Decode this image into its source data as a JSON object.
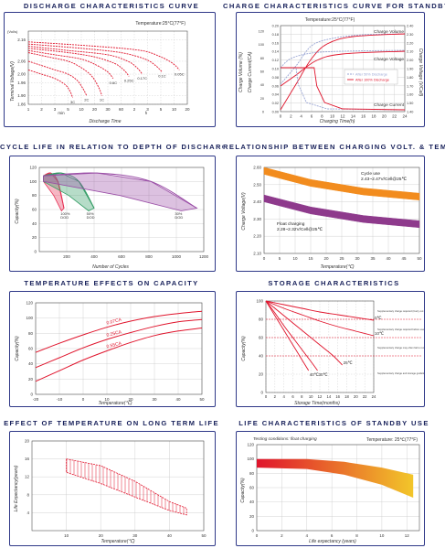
{
  "chart_data": [
    {
      "type": "line",
      "title": "DISCHARGE CHARACTERISTICS CURVE",
      "condition": "Temperature:25°C(77°F)",
      "xlabel": "Discharge Time",
      "ylabel": "Terminal Voltage(V)",
      "yunit": "(Vol/s)",
      "x_unit_min": "min",
      "x_unit_h": "h",
      "ylim": [
        1.86,
        2.2
      ],
      "xticks": [
        "1",
        "2",
        "3",
        "5",
        "10",
        "20",
        "30",
        "60",
        "2",
        "3",
        "5",
        "10",
        "20"
      ],
      "yticks": [
        "2.16",
        "2.06",
        "2.00",
        "1.96",
        "1.90",
        "1.86"
      ],
      "series": [
        {
          "name": "3C",
          "values": [
            [
              0,
              2.02
            ],
            [
              1,
              2.0
            ],
            [
              2,
              1.98
            ],
            [
              2.8,
              1.95
            ],
            [
              3.15,
              1.92
            ],
            [
              3.35,
              1.89
            ]
          ]
        },
        {
          "name": "2C",
          "values": [
            [
              0,
              2.06
            ],
            [
              1,
              2.04
            ],
            [
              2,
              2.02
            ],
            [
              3,
              2.0
            ],
            [
              3.7,
              1.97
            ],
            [
              4.15,
              1.93
            ],
            [
              4.4,
              1.9
            ]
          ]
        },
        {
          "name": "1C",
          "values": [
            [
              0,
              2.1
            ],
            [
              1.5,
              2.08
            ],
            [
              3,
              2.06
            ],
            [
              4,
              2.03
            ],
            [
              4.8,
              1.99
            ],
            [
              5.3,
              1.94
            ],
            [
              5.55,
              1.9
            ]
          ]
        },
        {
          "name": "0.6C",
          "values": [
            [
              0,
              2.11
            ],
            [
              2,
              2.09
            ],
            [
              4,
              2.07
            ],
            [
              5.2,
              2.04
            ],
            [
              6,
              2.01
            ],
            [
              6.4,
              1.98
            ]
          ]
        },
        {
          "name": "0.25C",
          "values": [
            [
              0,
              2.12
            ],
            [
              3,
              2.1
            ],
            [
              5,
              2.08
            ],
            [
              6.5,
              2.05
            ],
            [
              7.2,
              2.02
            ],
            [
              7.6,
              1.99
            ]
          ]
        },
        {
          "name": "0.17C",
          "values": [
            [
              0,
              2.13
            ],
            [
              3,
              2.11
            ],
            [
              6,
              2.09
            ],
            [
              7.5,
              2.06
            ],
            [
              8.2,
              2.03
            ],
            [
              8.6,
              2.0
            ]
          ]
        },
        {
          "name": "0.1C",
          "values": [
            [
              0,
              2.14
            ],
            [
              4,
              2.12
            ],
            [
              7,
              2.1
            ],
            [
              8.8,
              2.07
            ],
            [
              9.6,
              2.04
            ],
            [
              10.1,
              2.01
            ]
          ]
        },
        {
          "name": "0.05C",
          "values": [
            [
              0,
              2.15
            ],
            [
              5,
              2.13
            ],
            [
              8.5,
              2.11
            ],
            [
              10,
              2.08
            ],
            [
              10.9,
              2.05
            ],
            [
              11.4,
              2.02
            ]
          ]
        }
      ],
      "line_color": "#e0142c",
      "grid": "dashed"
    },
    {
      "type": "line",
      "title": "CHARGE CHARACTERISTICS CURVE FOR STANDBY US",
      "condition": "Temperature:25°C(77°F)",
      "xlabel": "Charging Time(h)",
      "ylabel": "Charge Volume (%)",
      "ylabel2": "Charge Voltage (V/Cell)",
      "y2label": "Charge Current(CA)",
      "xticks": [
        "0",
        "2",
        "4",
        "6",
        "8",
        "10",
        "12",
        "14",
        "16",
        "18",
        "20",
        "22",
        "24"
      ],
      "yticks_left": [
        "0.20",
        "0.18",
        "0.16",
        "0.14",
        "0.12",
        "0.10",
        "0.08",
        "0.06",
        "0.04",
        "0.02",
        "0.00"
      ],
      "yticks_left2": [
        "120",
        "100",
        "80",
        "60",
        "40",
        "20",
        "0"
      ],
      "yticks_right": [
        "2.40",
        "2.30",
        "2.20",
        "2.10",
        "2.00",
        "1.90",
        "1.80",
        "1.70",
        "1.60",
        "1.50",
        "1.40"
      ],
      "labels": [
        "Charge Volume",
        "Charge Voltage",
        "Charge Current"
      ],
      "legend": [
        "After 50% Discharge",
        "After 100% Discharge"
      ],
      "legend_colors": [
        "#9aa6d4",
        "#e0142c"
      ]
    },
    {
      "type": "area",
      "title": "CYCLE LIFE IN RELATION TO DEPTH OF DISCHARGE",
      "xlabel": "Number of Cycles",
      "ylabel": "Capacity(%)",
      "xlim": [
        0,
        1200
      ],
      "ylim": [
        0,
        120
      ],
      "xticks": [
        "200",
        "400",
        "600",
        "800",
        "1000",
        "1200"
      ],
      "yticks": [
        "0",
        "20",
        "40",
        "60",
        "80",
        "100",
        "120"
      ],
      "series": [
        {
          "name": "100% DOD",
          "color": "#e62e52",
          "end_cycles": 180
        },
        {
          "name": "50% DOD",
          "color": "#2f9a62",
          "end_cycles": 400
        },
        {
          "name": "30% DOD",
          "color": "#9a4ea6",
          "end_cycles": 1150
        }
      ]
    },
    {
      "type": "area",
      "title": "RELATIONSHIP BETWEEN CHARGING VOLT. & TEMP",
      "xlabel": "Temperature(℃)",
      "ylabel": "Charge Voltage(V)",
      "xlim": [
        0,
        50
      ],
      "ylim": [
        2.1,
        2.6
      ],
      "xticks": [
        "0",
        "5",
        "10",
        "15",
        "20",
        "25",
        "30",
        "35",
        "40",
        "45",
        "50"
      ],
      "yticks": [
        "2.10",
        "2.20",
        "2.30",
        "2.40",
        "2.50",
        "2.60"
      ],
      "series": [
        {
          "name": "Cycle use",
          "label2": "2.43~2.47V/Cell@25℃",
          "color": "#f28c1e",
          "low": [
            2.56,
            2.49,
            2.44,
            2.41
          ],
          "high": [
            2.6,
            2.53,
            2.48,
            2.45
          ]
        },
        {
          "name": "Float charging",
          "label2": "2.28~2.32V/Cell@25℃",
          "color": "#8e3a8c",
          "low": [
            2.4,
            2.33,
            2.28,
            2.25
          ],
          "high": [
            2.44,
            2.37,
            2.32,
            2.29
          ]
        }
      ]
    },
    {
      "type": "line",
      "title": "TEMPERATURE EFFECTS ON CAPACITY",
      "xlabel": "Temperature(℃)",
      "ylabel": "Capacity(%)",
      "xlim": [
        -20,
        50
      ],
      "ylim": [
        0,
        120
      ],
      "xticks": [
        "-20",
        "-10",
        "0",
        "10",
        "20",
        "30",
        "40",
        "50"
      ],
      "yticks": [
        "0",
        "20",
        "40",
        "60",
        "80",
        "100",
        "120"
      ],
      "series": [
        {
          "name": "0.07CA",
          "x": [
            -20,
            -10,
            0,
            10,
            20,
            30,
            40,
            50
          ],
          "values": [
            55,
            67,
            78,
            88,
            96,
            102,
            106,
            109
          ]
        },
        {
          "name": "0.25CA",
          "x": [
            -20,
            -10,
            0,
            10,
            20,
            30,
            40,
            50
          ],
          "values": [
            35,
            48,
            61,
            72,
            81,
            89,
            95,
            98
          ]
        },
        {
          "name": "0.55CA",
          "x": [
            -20,
            -10,
            0,
            10,
            20,
            30,
            40,
            50
          ],
          "values": [
            17,
            31,
            45,
            57,
            68,
            77,
            83,
            87
          ]
        }
      ],
      "line_color": "#e0142c"
    },
    {
      "type": "line",
      "title": "STORAGE CHARACTERISTICS",
      "xlabel": "Storage Time(months)",
      "ylabel": "Capacity(%)",
      "xlim": [
        0,
        24
      ],
      "ylim": [
        0,
        100
      ],
      "xticks": [
        "0",
        "2",
        "4",
        "6",
        "8",
        "10",
        "12",
        "14",
        "16",
        "18",
        "20",
        "22",
        "24"
      ],
      "yticks": [
        "0",
        "20",
        "40",
        "60",
        "80",
        "100"
      ],
      "series": [
        {
          "name": "0℃",
          "x": [
            0,
            4,
            8,
            12,
            16,
            20,
            24
          ],
          "values": [
            100,
            96,
            92,
            88,
            85,
            82,
            79
          ]
        },
        {
          "name": "10℃",
          "x": [
            0,
            4,
            8,
            12,
            16,
            20,
            24
          ],
          "values": [
            100,
            92,
            85,
            78,
            72,
            67,
            62
          ]
        },
        {
          "name": "25℃",
          "x": [
            0,
            3,
            6,
            9,
            12,
            15,
            17
          ],
          "values": [
            100,
            88,
            76,
            64,
            52,
            40,
            30
          ]
        },
        {
          "name": "40℃",
          "x": [
            0,
            2,
            4,
            6,
            8,
            9.5
          ],
          "values": [
            100,
            84,
            68,
            52,
            36,
            24
          ]
        },
        {
          "name": "30℃",
          "x": [
            0,
            2,
            4,
            6,
            8,
            10,
            11.5
          ],
          "values": [
            100,
            87,
            73,
            60,
            47,
            34,
            24
          ]
        }
      ],
      "annotations": [
        "Supplementary charge required (Carry out supplementary charge before use if 100% capacity is required)",
        "Supplementary charge required before use. This supplementary charge will help to ensure the capacity and should be made as early as possible",
        "Supplementary charge may often fail to recover the capacity. The battery should never be left standing until it reaches this point.",
        "Supplementary charge and storage guidelines"
      ],
      "line_color": "#e0142c"
    },
    {
      "type": "area",
      "title": "EFFECT OF TEMPERATURE ON LONG TERM LIFE",
      "xlabel": "Temperature(℃)",
      "ylabel": "Life Expectancy(years)",
      "xlim": [
        0,
        50
      ],
      "ylim": [
        0,
        20
      ],
      "xticks": [
        "10",
        "20",
        "30",
        "40",
        "50"
      ],
      "yticks": [
        "20",
        "16",
        "12",
        "8",
        "4"
      ],
      "band": {
        "x": [
          10,
          20,
          30,
          40,
          45
        ],
        "low": [
          13,
          10.5,
          7.5,
          4.5,
          3.5
        ],
        "high": [
          16,
          14.5,
          11,
          6.5,
          5
        ]
      },
      "color": "#e0142c"
    },
    {
      "type": "area",
      "title": "LIFE CHARACTERISTICS OF STANDBY USE",
      "note": "Testing conditions: float charging",
      "condition": "Temperature: 25℃(77°F)",
      "xlabel": "Life expectancy (years)",
      "ylabel": "Capacity(%)",
      "xlim": [
        0,
        13
      ],
      "ylim": [
        0,
        120
      ],
      "xticks": [
        "0",
        "2",
        "4",
        "6",
        "8",
        "10",
        "12"
      ],
      "yticks": [
        "0",
        "20",
        "40",
        "60",
        "80",
        "100",
        "120"
      ],
      "band": {
        "x": [
          0,
          4,
          7,
          10,
          12.5
        ],
        "low": [
          88,
          86,
          78,
          64,
          46
        ],
        "high": [
          100,
          100,
          96,
          88,
          78
        ]
      },
      "colors": [
        "#e0142c",
        "#f2c62a"
      ]
    }
  ]
}
